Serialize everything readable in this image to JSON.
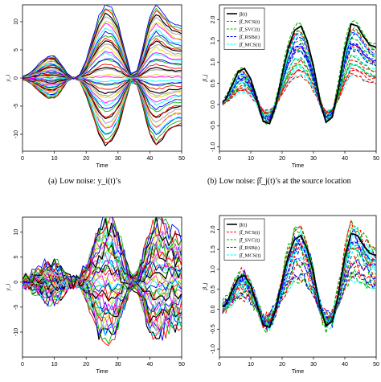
{
  "captions": {
    "a": {
      "label": "(a)",
      "text": "Low noise: y_i(t)’s"
    },
    "b": {
      "label": "(b)",
      "text": "Low noise: β̂_j(t)’s at the source location"
    }
  },
  "chart_data": [
    {
      "id": "a",
      "type": "line",
      "xlabel": "Time",
      "ylabel": "y_i",
      "xlim": [
        0,
        50
      ],
      "ylim": [
        -13,
        13
      ],
      "xticks": [
        0,
        10,
        20,
        30,
        40,
        50
      ],
      "yticks": [
        -10,
        -5,
        0,
        5,
        10
      ],
      "grid": false,
      "base_curve": {
        "x": [
          0,
          2,
          4,
          6,
          8,
          10,
          12,
          14,
          16,
          18,
          20,
          22,
          24,
          26,
          28,
          30,
          32,
          34,
          36,
          38,
          40,
          42,
          44,
          46,
          48,
          50
        ],
        "y": [
          0.2,
          0.6,
          1.4,
          2.2,
          3.0,
          3.0,
          2.0,
          0.6,
          -0.1,
          0.5,
          2.5,
          5.5,
          8.4,
          10.0,
          9.5,
          7.5,
          4.0,
          0.6,
          1.0,
          4.5,
          8.4,
          10.0,
          9.0,
          7.8,
          7.2,
          7.0
        ]
      },
      "n_series": 44,
      "min_amplitude": -1.2,
      "max_amplitude": 1.3,
      "noise_sd": 0.12,
      "palette": [
        "#000000",
        "#ff0000",
        "#00bb00",
        "#0000ff",
        "#00ffff",
        "#ff00ff",
        "#dddd00",
        "#b0b0b0"
      ]
    },
    {
      "id": "b",
      "type": "line",
      "xlabel": "Time",
      "ylabel": "β_j",
      "xlim": [
        0,
        50
      ],
      "ylim": [
        -1.1,
        2.35
      ],
      "xticks": [
        0,
        10,
        20,
        30,
        40,
        50
      ],
      "yticks": [
        -1.0,
        -0.5,
        0.0,
        0.5,
        1.0,
        1.5,
        2.0
      ],
      "grid": false,
      "legend_position": "top-left",
      "legend": [
        "β(t)",
        "β̂_NCS(t)",
        "β̂_SVC(t)",
        "β̂_RSB(t)",
        "β̂_MCS(t)"
      ],
      "series_colors": [
        "#000000",
        "#ff0000",
        "#00bb00",
        "#0000ff",
        "#00ffff"
      ],
      "truth": {
        "name": "β(t)",
        "color": "#000000",
        "x": [
          0,
          2,
          4,
          6,
          8,
          10,
          12,
          14,
          16,
          18,
          20,
          22,
          24,
          26,
          28,
          30,
          32,
          34,
          36,
          38,
          40,
          42,
          44,
          46,
          48,
          50
        ],
        "y": [
          0.0,
          0.12,
          0.45,
          0.78,
          0.85,
          0.6,
          0.1,
          -0.4,
          -0.45,
          0.0,
          0.7,
          1.35,
          1.75,
          1.85,
          1.5,
          0.9,
          0.1,
          -0.42,
          -0.3,
          0.4,
          1.3,
          1.9,
          1.85,
          1.6,
          1.4,
          1.35
        ]
      },
      "estimates": {
        "colors": [
          "#ff0000",
          "#00bb00",
          "#0000ff",
          "#00ffff"
        ],
        "per_color": 6,
        "scale_min": 0.35,
        "scale_max": 1.12,
        "noise_sd": 0.04
      }
    },
    {
      "id": "c",
      "type": "line",
      "xlabel": "Time",
      "ylabel": "y_i",
      "xlim": [
        0,
        50
      ],
      "ylim": [
        -15,
        13
      ],
      "xticks": [
        0,
        10,
        20,
        30,
        40,
        50
      ],
      "yticks": [
        -10,
        -5,
        0,
        5,
        10
      ],
      "grid": false,
      "base_curve": {
        "x": [
          0,
          2,
          4,
          6,
          8,
          10,
          12,
          14,
          16,
          18,
          20,
          22,
          24,
          26,
          28,
          30,
          32,
          34,
          36,
          38,
          40,
          42,
          44,
          46,
          48,
          50
        ],
        "y": [
          0.2,
          0.6,
          1.4,
          2.2,
          3.0,
          3.0,
          2.0,
          0.6,
          -0.1,
          0.5,
          2.5,
          5.5,
          8.4,
          10.0,
          9.5,
          7.5,
          4.0,
          0.6,
          1.0,
          4.5,
          8.4,
          10.0,
          9.0,
          7.8,
          7.2,
          7.0
        ]
      },
      "n_series": 44,
      "min_amplitude": -1.2,
      "max_amplitude": 1.3,
      "noise_sd": 1.3,
      "palette": [
        "#000000",
        "#ff0000",
        "#00bb00",
        "#0000ff",
        "#00ffff",
        "#ff00ff",
        "#dddd00",
        "#b0b0b0"
      ]
    },
    {
      "id": "d",
      "type": "line",
      "xlabel": "Time",
      "ylabel": "β_j",
      "xlim": [
        0,
        50
      ],
      "ylim": [
        -1.2,
        2.35
      ],
      "xticks": [
        0,
        10,
        20,
        30,
        40,
        50
      ],
      "yticks": [
        -1.0,
        -0.5,
        0.0,
        0.5,
        1.0,
        1.5,
        2.0
      ],
      "grid": false,
      "legend_position": "top-left",
      "legend": [
        "β(t)",
        "β̂_NCS(t)",
        "β̂_SVC(t)",
        "β̂_RSB(t)",
        "β̂_MCS(t)"
      ],
      "series_colors": [
        "#000000",
        "#ff0000",
        "#00bb00",
        "#0000ff",
        "#00ffff"
      ],
      "truth": {
        "name": "β(t)",
        "color": "#000000",
        "x": [
          0,
          2,
          4,
          6,
          8,
          10,
          12,
          14,
          16,
          18,
          20,
          22,
          24,
          26,
          28,
          30,
          32,
          34,
          36,
          38,
          40,
          42,
          44,
          46,
          48,
          50
        ],
        "y": [
          0.0,
          0.12,
          0.45,
          0.78,
          0.85,
          0.6,
          0.1,
          -0.4,
          -0.45,
          0.0,
          0.7,
          1.35,
          1.75,
          1.85,
          1.5,
          0.9,
          0.1,
          -0.42,
          -0.3,
          0.4,
          1.3,
          1.9,
          1.85,
          1.6,
          1.4,
          1.35
        ]
      },
      "estimates": {
        "colors": [
          "#ff0000",
          "#00bb00",
          "#0000ff",
          "#00ffff"
        ],
        "per_color": 6,
        "scale_min": 0.4,
        "scale_max": 1.15,
        "noise_sd": 0.16
      }
    }
  ]
}
